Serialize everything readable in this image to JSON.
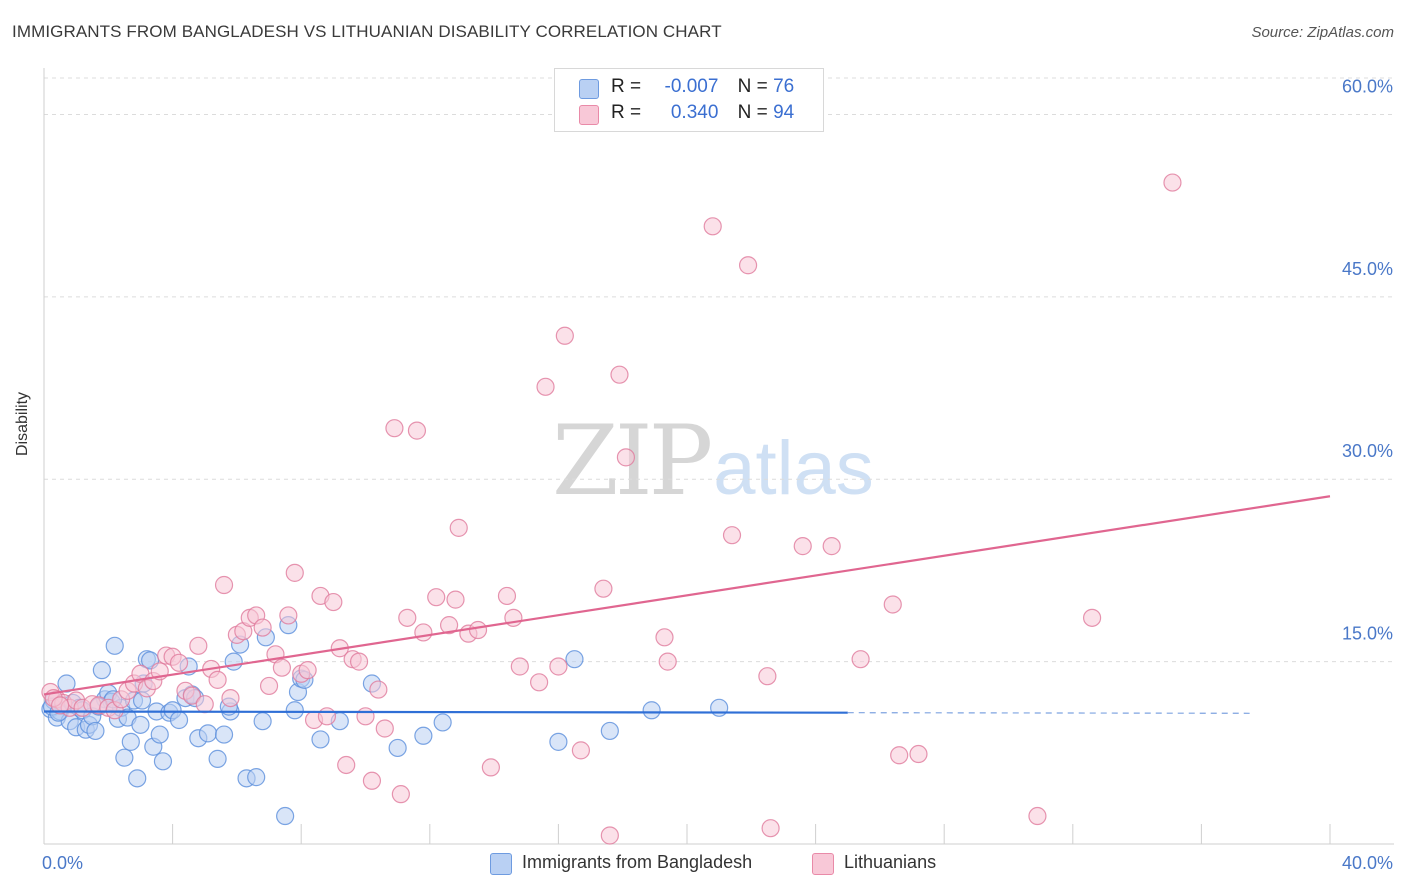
{
  "title": "IMMIGRANTS FROM BANGLADESH VS LITHUANIAN DISABILITY CORRELATION CHART",
  "source": "Source: ZipAtlas.com",
  "watermark": {
    "part1": "ZIP",
    "part2": "atlas"
  },
  "legend_top": [
    {
      "r_label": "R =",
      "r_value": "-0.007",
      "n_label": "N =",
      "n_value": "76",
      "color": "#6e9be0",
      "fill": "#b9d0f3"
    },
    {
      "r_label": "R =",
      "r_value": "0.340",
      "n_label": "N =",
      "n_value": "94",
      "color": "#e98aa8",
      "fill": "#f8c8d7"
    }
  ],
  "chart_data": {
    "type": "scatter",
    "title": "IMMIGRANTS FROM BANGLADESH VS LITHUANIAN DISABILITY CORRELATION CHART",
    "xlabel": "",
    "ylabel": "Disability",
    "xlim": [
      0,
      40
    ],
    "ylim": [
      0,
      63
    ],
    "x_tick_labels": [
      "0.0%",
      "40.0%"
    ],
    "y_ticks": [
      15,
      30,
      45,
      60
    ],
    "y_tick_labels": [
      "15.0%",
      "30.0%",
      "45.0%",
      "60.0%"
    ],
    "grid": true,
    "legend_position": "bottom",
    "series": [
      {
        "name": "Immigrants from Bangladesh",
        "color": "#5b8fdc",
        "fill": "#b9d0f3",
        "trend": {
          "x": [
            0,
            25
          ],
          "y": [
            10.9,
            10.8
          ],
          "dashed_to": 37.5
        },
        "points": [
          [
            0.2,
            11.1
          ],
          [
            0.3,
            11.8
          ],
          [
            0.4,
            10.4
          ],
          [
            0.5,
            10.9
          ],
          [
            0.6,
            11.4
          ],
          [
            0.7,
            13.2
          ],
          [
            0.8,
            10.1
          ],
          [
            0.9,
            11.6
          ],
          [
            1.0,
            9.6
          ],
          [
            1.1,
            11.2
          ],
          [
            1.2,
            11.0
          ],
          [
            1.3,
            9.4
          ],
          [
            1.4,
            9.8
          ],
          [
            1.5,
            10.5
          ],
          [
            1.6,
            9.3
          ],
          [
            1.8,
            14.3
          ],
          [
            1.9,
            11.9
          ],
          [
            2.0,
            12.4
          ],
          [
            2.1,
            11.7
          ],
          [
            2.2,
            16.3
          ],
          [
            2.3,
            10.3
          ],
          [
            2.4,
            11.2
          ],
          [
            2.5,
            7.1
          ],
          [
            2.6,
            10.4
          ],
          [
            2.7,
            8.4
          ],
          [
            2.8,
            11.8
          ],
          [
            2.9,
            5.4
          ],
          [
            3.0,
            9.8
          ],
          [
            3.1,
            13.2
          ],
          [
            3.2,
            15.2
          ],
          [
            3.3,
            15.1
          ],
          [
            3.4,
            8.0
          ],
          [
            3.5,
            10.9
          ],
          [
            3.6,
            9.0
          ],
          [
            3.7,
            6.8
          ],
          [
            3.9,
            10.8
          ],
          [
            4.0,
            11.0
          ],
          [
            4.2,
            10.2
          ],
          [
            4.4,
            12.0
          ],
          [
            4.5,
            14.6
          ],
          [
            4.6,
            12.3
          ],
          [
            4.8,
            8.7
          ],
          [
            5.1,
            9.1
          ],
          [
            5.4,
            7.0
          ],
          [
            5.6,
            9.0
          ],
          [
            5.8,
            10.9
          ],
          [
            5.9,
            15.0
          ],
          [
            6.1,
            16.4
          ],
          [
            6.3,
            5.4
          ],
          [
            6.6,
            5.5
          ],
          [
            6.8,
            10.1
          ],
          [
            6.9,
            17.0
          ],
          [
            7.5,
            2.3
          ],
          [
            7.6,
            18.0
          ],
          [
            7.8,
            11.0
          ],
          [
            7.9,
            12.5
          ],
          [
            8.0,
            13.6
          ],
          [
            8.1,
            13.5
          ],
          [
            8.6,
            8.6
          ],
          [
            9.2,
            10.1
          ],
          [
            10.2,
            13.2
          ],
          [
            11.0,
            7.9
          ],
          [
            11.8,
            8.9
          ],
          [
            12.4,
            10.0
          ],
          [
            16.0,
            8.4
          ],
          [
            16.5,
            15.2
          ],
          [
            17.6,
            9.3
          ],
          [
            18.9,
            11.0
          ],
          [
            21.0,
            11.2
          ],
          [
            0.25,
            11.3
          ],
          [
            0.45,
            10.8
          ],
          [
            1.7,
            11.3
          ],
          [
            2.15,
            11.9
          ],
          [
            3.05,
            11.8
          ],
          [
            4.7,
            12.0
          ],
          [
            5.75,
            11.3
          ]
        ]
      },
      {
        "name": "Lithuanians",
        "color": "#e07a9c",
        "fill": "#f8c8d7",
        "trend": {
          "x": [
            0,
            40
          ],
          "y": [
            12.3,
            28.6
          ]
        },
        "points": [
          [
            0.2,
            12.5
          ],
          [
            0.4,
            11.9
          ],
          [
            0.6,
            11.6
          ],
          [
            0.8,
            11.2
          ],
          [
            1.0,
            11.8
          ],
          [
            1.2,
            11.2
          ],
          [
            1.5,
            11.5
          ],
          [
            1.7,
            11.4
          ],
          [
            2.0,
            11.2
          ],
          [
            2.2,
            11.0
          ],
          [
            2.4,
            11.9
          ],
          [
            2.6,
            12.6
          ],
          [
            2.8,
            13.2
          ],
          [
            3.0,
            14.0
          ],
          [
            3.2,
            12.8
          ],
          [
            3.4,
            13.4
          ],
          [
            3.6,
            14.2
          ],
          [
            3.8,
            15.5
          ],
          [
            4.0,
            15.4
          ],
          [
            4.2,
            14.9
          ],
          [
            4.4,
            12.6
          ],
          [
            4.6,
            12.2
          ],
          [
            4.8,
            16.3
          ],
          [
            5.0,
            11.5
          ],
          [
            5.2,
            14.4
          ],
          [
            5.4,
            13.5
          ],
          [
            5.6,
            21.3
          ],
          [
            5.8,
            12.0
          ],
          [
            6.0,
            17.2
          ],
          [
            6.2,
            17.5
          ],
          [
            6.4,
            18.6
          ],
          [
            6.6,
            18.8
          ],
          [
            6.8,
            17.8
          ],
          [
            7.0,
            13.0
          ],
          [
            7.2,
            15.6
          ],
          [
            7.4,
            14.5
          ],
          [
            7.6,
            18.8
          ],
          [
            7.8,
            22.3
          ],
          [
            8.0,
            14.0
          ],
          [
            8.2,
            14.3
          ],
          [
            8.4,
            10.2
          ],
          [
            8.6,
            20.4
          ],
          [
            8.8,
            10.5
          ],
          [
            9.0,
            19.9
          ],
          [
            9.2,
            16.1
          ],
          [
            9.4,
            6.5
          ],
          [
            9.6,
            15.2
          ],
          [
            9.8,
            15.0
          ],
          [
            10.0,
            10.5
          ],
          [
            10.2,
            5.2
          ],
          [
            10.4,
            12.7
          ],
          [
            10.6,
            9.5
          ],
          [
            10.9,
            34.2
          ],
          [
            11.1,
            4.1
          ],
          [
            11.3,
            18.6
          ],
          [
            11.6,
            34.0
          ],
          [
            11.8,
            17.4
          ],
          [
            12.2,
            20.3
          ],
          [
            12.6,
            18.0
          ],
          [
            12.8,
            20.1
          ],
          [
            12.9,
            26.0
          ],
          [
            13.2,
            17.3
          ],
          [
            13.5,
            17.6
          ],
          [
            13.9,
            6.3
          ],
          [
            14.4,
            20.4
          ],
          [
            14.6,
            18.6
          ],
          [
            14.8,
            14.6
          ],
          [
            15.4,
            13.3
          ],
          [
            15.6,
            37.6
          ],
          [
            16.0,
            14.6
          ],
          [
            16.2,
            41.8
          ],
          [
            16.7,
            7.7
          ],
          [
            17.4,
            21.0
          ],
          [
            17.6,
            0.7
          ],
          [
            17.9,
            38.6
          ],
          [
            18.1,
            31.8
          ],
          [
            19.3,
            17.0
          ],
          [
            19.4,
            15.0
          ],
          [
            20.8,
            50.8
          ],
          [
            21.4,
            25.4
          ],
          [
            21.9,
            47.6
          ],
          [
            22.5,
            13.8
          ],
          [
            22.6,
            1.3
          ],
          [
            23.6,
            24.5
          ],
          [
            24.5,
            24.5
          ],
          [
            25.4,
            15.2
          ],
          [
            26.4,
            19.7
          ],
          [
            26.6,
            7.3
          ],
          [
            27.2,
            7.4
          ],
          [
            30.9,
            2.3
          ],
          [
            32.6,
            18.6
          ],
          [
            35.1,
            54.4
          ],
          [
            0.3,
            12.0
          ],
          [
            0.5,
            11.4
          ]
        ]
      }
    ]
  }
}
